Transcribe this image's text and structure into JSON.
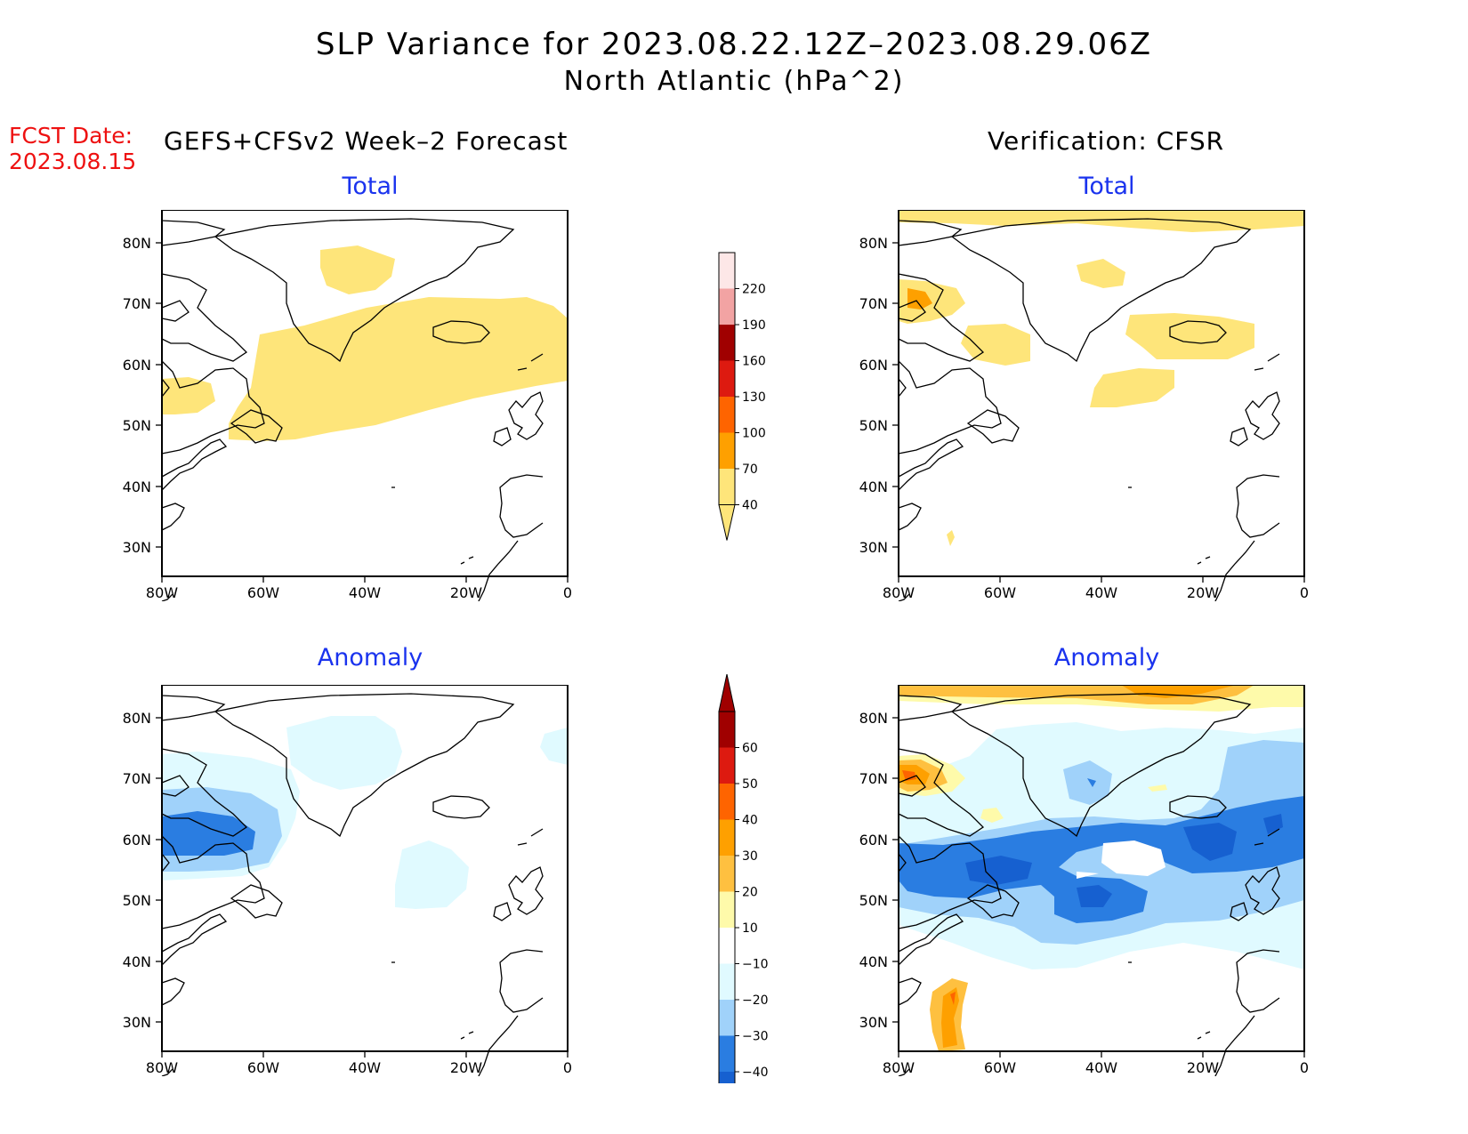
{
  "header": {
    "title_line1": "SLP Variance for 2023.08.22.12Z–2023.08.29.06Z",
    "title_line2": "North Atlantic (hPa^2)",
    "fcst_label": "FCST Date:",
    "fcst_date": "2023.08.15",
    "left_subtitle": "GEFS+CFSv2 Week–2 Forecast",
    "right_subtitle": "Verification: CFSR"
  },
  "panels": {
    "forecast_total": {
      "title": "Total"
    },
    "verification_total": {
      "title": "Total"
    },
    "forecast_anomaly": {
      "title": "Anomaly"
    },
    "verification_anomaly": {
      "title": "Anomaly"
    }
  },
  "axes": {
    "lat_labels": [
      "80N",
      "70N",
      "60N",
      "50N",
      "40N",
      "30N"
    ],
    "lon_labels": [
      "80W",
      "60W",
      "40W",
      "20W",
      "0"
    ]
  },
  "colorbars": {
    "total": {
      "levels": [
        "220",
        "190",
        "160",
        "130",
        "100",
        "70",
        "40"
      ],
      "colors": [
        "#fde7e7",
        "#f2a3a3",
        "#a00000",
        "#dd1a10",
        "#fe6400",
        "#fea000",
        "#fee57a"
      ]
    },
    "anomaly": {
      "levels": [
        "60",
        "50",
        "40",
        "30",
        "20",
        "10",
        "−10",
        "−20",
        "−30",
        "−40"
      ],
      "colors": [
        "#a00000",
        "#dd1a10",
        "#fe6400",
        "#fea000",
        "#fec040",
        "#fefaaa",
        "#ffffff",
        "#e0faff",
        "#a0d2fa",
        "#2a7de1",
        "#1660d0"
      ]
    }
  },
  "colors": {
    "title_panel": "#1a33ee",
    "fcst_text": "#ee1111",
    "yellow": "#fee57a",
    "orange_light": "#fec040",
    "orange": "#fea000",
    "red_orange": "#fe6400",
    "cyan_light": "#e0faff",
    "blue_light": "#a0d2fa",
    "blue": "#2a7de1",
    "blue_dark": "#1660d0"
  }
}
